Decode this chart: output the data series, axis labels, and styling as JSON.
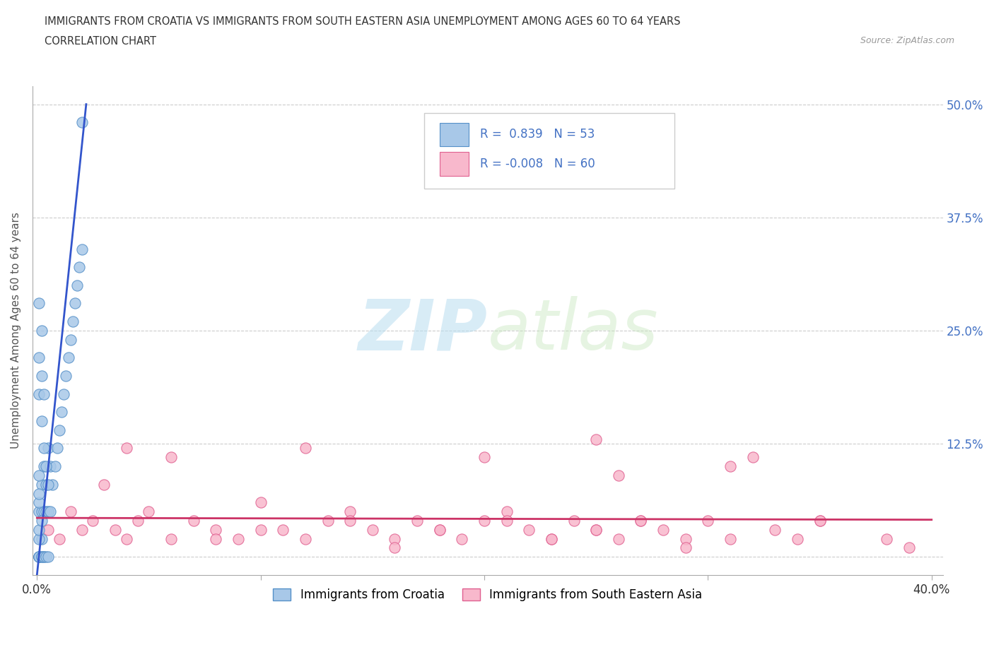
{
  "title_line1": "IMMIGRANTS FROM CROATIA VS IMMIGRANTS FROM SOUTH EASTERN ASIA UNEMPLOYMENT AMONG AGES 60 TO 64 YEARS",
  "title_line2": "CORRELATION CHART",
  "source_text": "Source: ZipAtlas.com",
  "ylabel": "Unemployment Among Ages 60 to 64 years",
  "xlim": [
    -0.002,
    0.405
  ],
  "ylim": [
    -0.02,
    0.52
  ],
  "xticks": [
    0.0,
    0.1,
    0.2,
    0.3,
    0.4
  ],
  "xticklabels": [
    "0.0%",
    "",
    "",
    "",
    "40.0%"
  ],
  "yticks": [
    0.0,
    0.125,
    0.25,
    0.375,
    0.5
  ],
  "yticklabels": [
    "",
    "12.5%",
    "25.0%",
    "37.5%",
    "50.0%"
  ],
  "croatia_color": "#a8c8e8",
  "croatia_edge": "#5590c8",
  "sea_color": "#f8b8cc",
  "sea_edge": "#e06090",
  "trend_croatia_color": "#3355cc",
  "trend_sea_color": "#cc3366",
  "croatia_R": 0.839,
  "croatia_N": 53,
  "sea_R": -0.008,
  "sea_N": 60,
  "croatia_legend": "Immigrants from Croatia",
  "sea_legend": "Immigrants from South Eastern Asia",
  "watermark_zip": "ZIP",
  "watermark_atlas": "atlas",
  "croatia_x": [
    0.001,
    0.001,
    0.001,
    0.001,
    0.001,
    0.002,
    0.002,
    0.002,
    0.002,
    0.002,
    0.003,
    0.003,
    0.003,
    0.003,
    0.004,
    0.004,
    0.004,
    0.005,
    0.005,
    0.005,
    0.006,
    0.006,
    0.007,
    0.008,
    0.009,
    0.01,
    0.011,
    0.012,
    0.013,
    0.014,
    0.015,
    0.016,
    0.017,
    0.018,
    0.019,
    0.02,
    0.001,
    0.001,
    0.001,
    0.002,
    0.002,
    0.002,
    0.003,
    0.003,
    0.004,
    0.005,
    0.001,
    0.001,
    0.002,
    0.001,
    0.001,
    0.001,
    0.02
  ],
  "croatia_y": [
    0.0,
    0.0,
    0.0,
    0.0,
    0.05,
    0.0,
    0.0,
    0.02,
    0.05,
    0.08,
    0.0,
    0.0,
    0.05,
    0.1,
    0.0,
    0.05,
    0.08,
    0.0,
    0.05,
    0.12,
    0.05,
    0.1,
    0.08,
    0.1,
    0.12,
    0.14,
    0.16,
    0.18,
    0.2,
    0.22,
    0.24,
    0.26,
    0.28,
    0.3,
    0.32,
    0.34,
    0.18,
    0.22,
    0.28,
    0.15,
    0.2,
    0.25,
    0.12,
    0.18,
    0.1,
    0.08,
    0.02,
    0.03,
    0.04,
    0.06,
    0.07,
    0.09,
    0.48
  ],
  "sea_x": [
    0.005,
    0.01,
    0.015,
    0.02,
    0.025,
    0.03,
    0.035,
    0.04,
    0.045,
    0.05,
    0.06,
    0.07,
    0.08,
    0.09,
    0.1,
    0.11,
    0.12,
    0.13,
    0.14,
    0.15,
    0.16,
    0.17,
    0.18,
    0.19,
    0.2,
    0.21,
    0.22,
    0.23,
    0.24,
    0.25,
    0.26,
    0.27,
    0.28,
    0.29,
    0.3,
    0.31,
    0.32,
    0.33,
    0.34,
    0.35,
    0.04,
    0.06,
    0.08,
    0.1,
    0.12,
    0.14,
    0.16,
    0.18,
    0.2,
    0.21,
    0.23,
    0.25,
    0.27,
    0.29,
    0.31,
    0.25,
    0.26,
    0.35,
    0.38,
    0.39
  ],
  "sea_y": [
    0.03,
    0.02,
    0.05,
    0.03,
    0.04,
    0.08,
    0.03,
    0.02,
    0.04,
    0.05,
    0.02,
    0.04,
    0.03,
    0.02,
    0.06,
    0.03,
    0.02,
    0.04,
    0.05,
    0.03,
    0.02,
    0.04,
    0.03,
    0.02,
    0.04,
    0.05,
    0.03,
    0.02,
    0.04,
    0.03,
    0.02,
    0.04,
    0.03,
    0.02,
    0.04,
    0.1,
    0.11,
    0.03,
    0.02,
    0.04,
    0.12,
    0.11,
    0.02,
    0.03,
    0.12,
    0.04,
    0.01,
    0.03,
    0.11,
    0.04,
    0.02,
    0.03,
    0.04,
    0.01,
    0.02,
    0.13,
    0.09,
    0.04,
    0.02,
    0.01
  ],
  "croatia_trend_x0": 0.0,
  "croatia_trend_y0": -0.02,
  "croatia_trend_x1": 0.022,
  "croatia_trend_y1": 0.5,
  "sea_trend_x0": 0.0,
  "sea_trend_y0": 0.043,
  "sea_trend_x1": 0.4,
  "sea_trend_y1": 0.041
}
